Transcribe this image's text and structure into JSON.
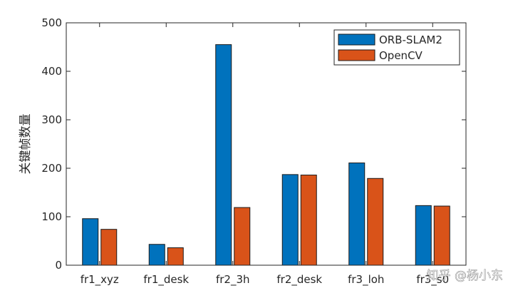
{
  "chart_data": {
    "type": "bar",
    "title": "",
    "xlabel": "",
    "ylabel": "关键帧数量",
    "ylim": [
      0,
      500
    ],
    "yticks": [
      0,
      100,
      200,
      300,
      400,
      500
    ],
    "categories": [
      "fr1_xyz",
      "fr1_desk",
      "fr2_3h",
      "fr2_desk",
      "fr3_loh",
      "fr3_s0"
    ],
    "series": [
      {
        "name": "ORB-SLAM2",
        "color": "#0072BD",
        "values": [
          96,
          43,
          455,
          187,
          211,
          123
        ]
      },
      {
        "name": "OpenCV",
        "color": "#D95319",
        "values": [
          74,
          36,
          119,
          186,
          179,
          122
        ]
      }
    ],
    "grid": false,
    "legend_position": "top-right"
  },
  "watermark": {
    "text": "知乎 @杨小东"
  }
}
